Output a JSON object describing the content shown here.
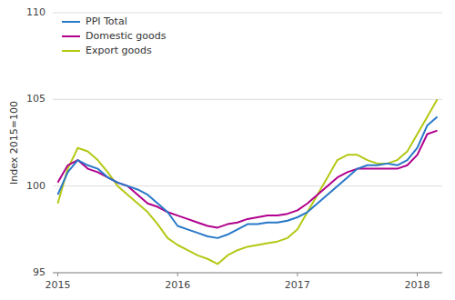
{
  "chart_data": {
    "type": "line",
    "y_label": "Index 2015=100",
    "categories": [
      "2015",
      null,
      null,
      null,
      null,
      null,
      null,
      null,
      null,
      null,
      null,
      null,
      "2016",
      null,
      null,
      null,
      null,
      null,
      null,
      null,
      null,
      null,
      null,
      null,
      "2017",
      null,
      null,
      null,
      null,
      null,
      null,
      null,
      null,
      null,
      null,
      null,
      "2018",
      null,
      null
    ],
    "series": [
      {
        "name": "PPI Total",
        "color": "#2878c8",
        "values": [
          99.5,
          100.8,
          101.5,
          101.2,
          101.0,
          100.5,
          100.2,
          100.0,
          99.8,
          99.5,
          99.0,
          98.5,
          97.7,
          97.5,
          97.3,
          97.1,
          97.0,
          97.2,
          97.5,
          97.8,
          97.8,
          97.9,
          97.9,
          98.0,
          98.2,
          98.5,
          99.0,
          99.5,
          100.0,
          100.5,
          101.0,
          101.2,
          101.2,
          101.3,
          101.2,
          101.5,
          102.2,
          103.5,
          104.0
        ]
      },
      {
        "name": "Domestic goods",
        "color": "#b0008c",
        "values": [
          100.2,
          101.2,
          101.5,
          101.0,
          100.8,
          100.5,
          100.2,
          100.0,
          99.5,
          99.0,
          98.8,
          98.5,
          98.3,
          98.1,
          97.9,
          97.7,
          97.6,
          97.8,
          97.9,
          98.1,
          98.2,
          98.3,
          98.3,
          98.4,
          98.6,
          99.0,
          99.5,
          100.0,
          100.5,
          100.8,
          101.0,
          101.0,
          101.0,
          101.0,
          101.0,
          101.2,
          101.8,
          103.0,
          103.2
        ]
      },
      {
        "name": "Export goods",
        "color": "#b4c814",
        "values": [
          99.0,
          101.0,
          102.2,
          102.0,
          101.5,
          100.8,
          100.0,
          99.5,
          99.0,
          98.5,
          97.8,
          97.0,
          96.6,
          96.3,
          96.0,
          95.8,
          95.5,
          96.0,
          96.3,
          96.5,
          96.6,
          96.7,
          96.8,
          97.0,
          97.5,
          98.5,
          99.5,
          100.5,
          101.5,
          101.8,
          101.8,
          101.5,
          101.3,
          101.3,
          101.5,
          102.0,
          103.0,
          104.0,
          105.0
        ]
      }
    ],
    "ylim": [
      95,
      110
    ],
    "yticks": [
      95,
      100,
      105,
      110
    ],
    "grid": true,
    "legend": "upper left"
  }
}
